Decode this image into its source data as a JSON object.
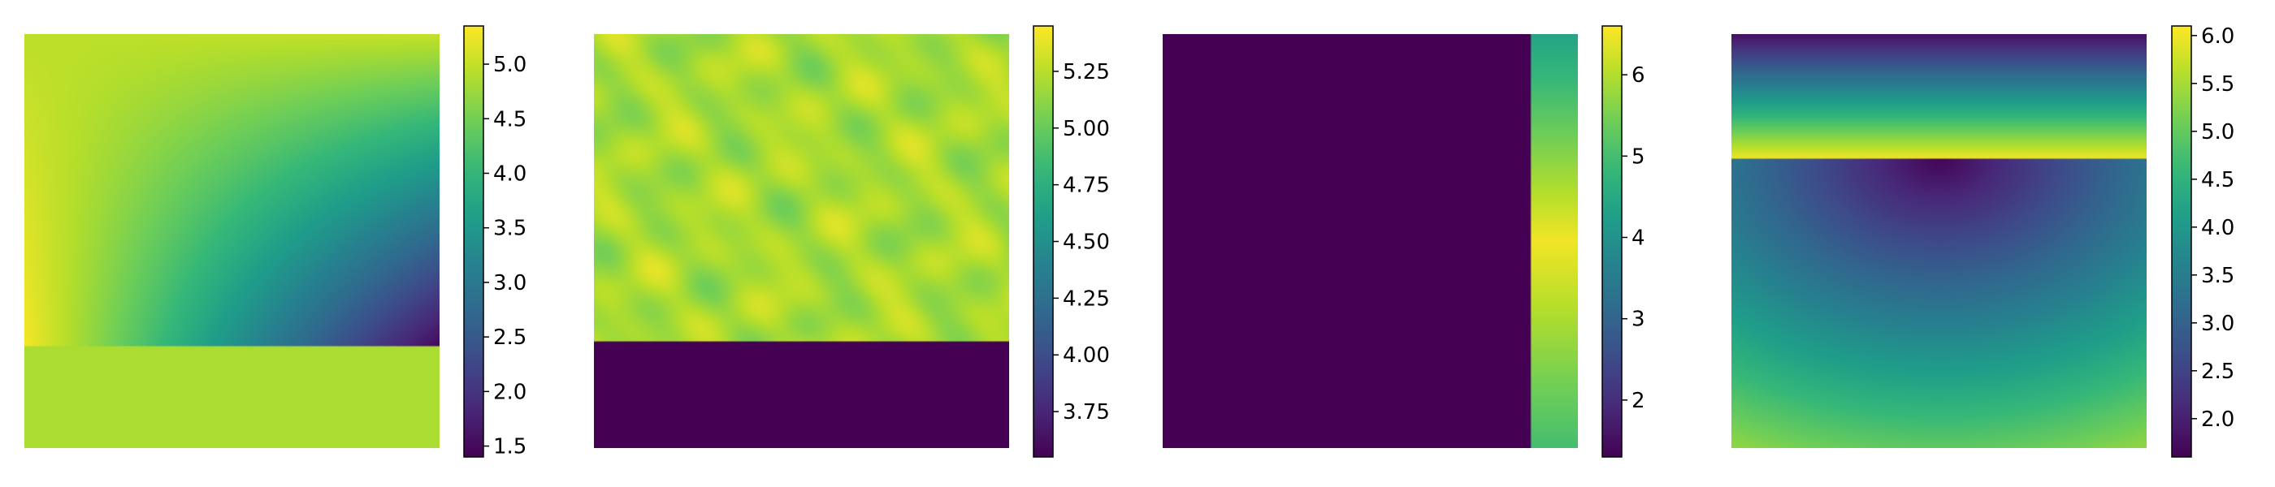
{
  "chart_data": [
    {
      "type": "heatmap",
      "pattern": "linear-gradient-top-band-constant-bottom",
      "colormap": "viridis",
      "vmin": 1.4,
      "vmax": 5.35,
      "split_fraction": 0.755,
      "top_region": {
        "corners": {
          "top_left": 4.95,
          "top_right": 5.0,
          "bottom_left": 5.3,
          "bottom_right": 1.5
        },
        "description_values": {
          "center_left_value": 4.6,
          "center_value": 4.3
        }
      },
      "bottom_region": {
        "value": 4.85
      },
      "colorbar_ticks": [
        1.5,
        2.0,
        2.5,
        3.0,
        3.5,
        4.0,
        4.5,
        5.0
      ],
      "colorbar_tick_labels": [
        "1.5",
        "2.0",
        "2.5",
        "3.0",
        "3.5",
        "4.0",
        "4.5",
        "5.0"
      ]
    },
    {
      "type": "heatmap",
      "pattern": "noisy-top-constant-bottom",
      "colormap": "viridis",
      "vmin": 3.55,
      "vmax": 5.45,
      "split_fraction": 0.745,
      "top_region": {
        "mean": 5.2,
        "noise_amplitude": 0.18
      },
      "bottom_region": {
        "value": 3.55
      },
      "colorbar_ticks": [
        3.75,
        4.0,
        4.25,
        4.5,
        4.75,
        5.0,
        5.25
      ],
      "colorbar_tick_labels": [
        "3.75",
        "4.00",
        "4.25",
        "4.50",
        "4.75",
        "5.00",
        "5.25"
      ]
    },
    {
      "type": "heatmap",
      "pattern": "constant-left-vertical-strip-right",
      "colormap": "viridis",
      "vmin": 1.3,
      "vmax": 6.6,
      "split_fraction": 0.89,
      "left_region": {
        "value": 1.3
      },
      "right_strip_profile": [
        {
          "pos": 0.0,
          "value": 4.4
        },
        {
          "pos": 0.5,
          "value": 6.5
        },
        {
          "pos": 1.0,
          "value": 5.0
        }
      ],
      "colorbar_ticks": [
        2,
        3,
        4,
        5,
        6
      ],
      "colorbar_tick_labels": [
        "2",
        "3",
        "4",
        "5",
        "6"
      ]
    },
    {
      "type": "heatmap",
      "pattern": "vertical-gradient-top-band-radial-bottom",
      "colormap": "viridis",
      "vmin": 1.6,
      "vmax": 6.1,
      "split_fraction": 0.3,
      "top_band_profile": [
        {
          "pos": 0.0,
          "value": 1.8
        },
        {
          "pos": 1.0,
          "value": 6.0
        }
      ],
      "bottom_region": {
        "min_value": 1.65,
        "max_value": 5.3,
        "radial_center": [
          0.5,
          0.0
        ],
        "radial_scale": 1.1
      },
      "colorbar_ticks": [
        2.0,
        2.5,
        3.0,
        3.5,
        4.0,
        4.5,
        5.0,
        5.5,
        6.0
      ],
      "colorbar_tick_labels": [
        "2.0",
        "2.5",
        "3.0",
        "3.5",
        "4.0",
        "4.5",
        "5.0",
        "5.5",
        "6.0"
      ]
    }
  ]
}
